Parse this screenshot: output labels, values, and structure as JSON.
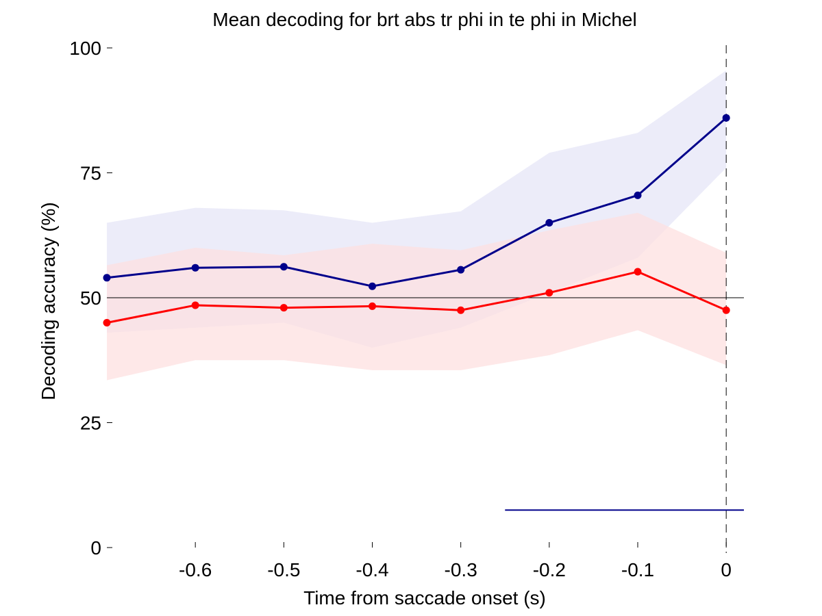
{
  "chart_data": {
    "type": "line",
    "title": "Mean decoding for brt abs tr phi in te phi in  Michel",
    "xlabel": "Time from saccade onset (s)",
    "ylabel": "Decoding accuracy (%)",
    "xlim": [
      -0.7,
      0.02
    ],
    "ylim": [
      0,
      100
    ],
    "xticks": [
      -0.6,
      -0.5,
      -0.4,
      -0.3,
      -0.2,
      -0.1,
      0
    ],
    "xtick_labels": [
      "-0.6",
      "-0.5",
      "-0.4",
      "-0.3",
      "-0.2",
      "-0.1",
      "0"
    ],
    "yticks": [
      0,
      25,
      50,
      75,
      100
    ],
    "ytick_labels": [
      "0",
      "25",
      "50",
      "75",
      "100"
    ],
    "x": [
      -0.7,
      -0.6,
      -0.5,
      -0.4,
      -0.3,
      -0.2,
      -0.1,
      0
    ],
    "series": [
      {
        "color": "#00008b",
        "band_color": "#e6e6f7",
        "values": [
          54.0,
          56.0,
          56.2,
          52.3,
          55.6,
          65.0,
          70.5,
          86.0
        ],
        "upper": [
          65.0,
          68.0,
          67.5,
          65.0,
          67.3,
          79.0,
          83.0,
          95.5
        ],
        "lower": [
          43.0,
          44.0,
          45.0,
          40.0,
          44.0,
          51.0,
          58.0,
          76.0
        ]
      },
      {
        "color": "#ff0000",
        "band_color": "#fde0e0",
        "values": [
          45.0,
          48.5,
          48.0,
          48.3,
          47.5,
          51.0,
          55.2,
          47.5
        ],
        "upper": [
          56.5,
          60.0,
          58.5,
          60.8,
          59.5,
          63.5,
          67.0,
          59.0
        ],
        "lower": [
          33.5,
          37.5,
          37.5,
          35.5,
          35.5,
          38.5,
          43.5,
          36.5
        ]
      }
    ],
    "reference_line_y": 50,
    "vertical_line_x": 0,
    "significance_bar": {
      "x_start": -0.25,
      "x_end": 0.02,
      "y": 7.5,
      "color": "#00008b"
    },
    "grid": false,
    "legend": "none"
  }
}
